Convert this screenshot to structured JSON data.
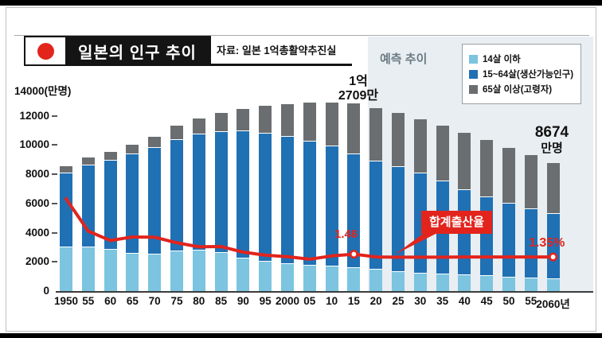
{
  "header": {
    "title": "일본의 인구 추이",
    "source": "자료: 일본 1억총활약추진실"
  },
  "y_axis": {
    "top_label": "14000(만명)",
    "tick_values": [
      12000,
      10000,
      8000,
      6000,
      4000,
      2000,
      0
    ]
  },
  "chart_data": {
    "type": "bar+line",
    "title": "일본의 인구 추이",
    "ylim": [
      0,
      14000
    ],
    "y_unit": "만명",
    "categories": [
      1950,
      1955,
      1960,
      1965,
      1970,
      1975,
      1980,
      1985,
      1990,
      1995,
      2000,
      2005,
      2010,
      2015,
      2020,
      2025,
      2030,
      2035,
      2040,
      2045,
      2050,
      2055,
      2060
    ],
    "x_tick_labels": [
      "1950",
      "55",
      "60",
      "65",
      "70",
      "75",
      "80",
      "85",
      "90",
      "95",
      "2000",
      "05",
      "10",
      "15",
      "20",
      "25",
      "30",
      "35",
      "40",
      "45",
      "50",
      "55",
      "2060년"
    ],
    "forecast_start_index": 14,
    "series": [
      {
        "name": "14살 이하",
        "color": "#7CC4DF",
        "values": [
          2979,
          3012,
          2843,
          2553,
          2515,
          2722,
          2752,
          2604,
          2254,
          2003,
          1851,
          1759,
          1684,
          1595,
          1457,
          1324,
          1204,
          1129,
          1073,
          1012,
          939,
          861,
          791
        ]
      },
      {
        "name": "15~64살(생산가능인구)",
        "color": "#2070B4",
        "values": [
          5017,
          5517,
          6047,
          6744,
          7212,
          7581,
          7888,
          8251,
          8614,
          8726,
          8638,
          8442,
          8174,
          7727,
          7341,
          7085,
          6773,
          6343,
          5787,
          5353,
          5001,
          4706,
          4418
        ]
      },
      {
        "name": "65살 이상(고령자)",
        "color": "#6A6E70",
        "values": [
          416,
          479,
          540,
          624,
          739,
          887,
          1065,
          1247,
          1493,
          1828,
          2204,
          2576,
          2948,
          3387,
          3612,
          3657,
          3685,
          3741,
          3868,
          3856,
          3768,
          3626,
          3464
        ]
      }
    ],
    "line": {
      "name": "합계출산율",
      "color": "#E2241D",
      "values": [
        3.65,
        2.37,
        2.0,
        2.14,
        2.13,
        1.91,
        1.75,
        1.76,
        1.54,
        1.42,
        1.36,
        1.26,
        1.39,
        1.46,
        1.35,
        1.34,
        1.34,
        1.34,
        1.35,
        1.35,
        1.35,
        1.35,
        1.35
      ],
      "marker_indices": [
        13,
        22
      ]
    },
    "annotations": {
      "forecast": "예측 추이",
      "peak": [
        "1억",
        "2709만"
      ],
      "end": [
        "8674",
        "만명"
      ],
      "tfr_2015": "1.46",
      "tfr_2060": "1.35%"
    }
  }
}
